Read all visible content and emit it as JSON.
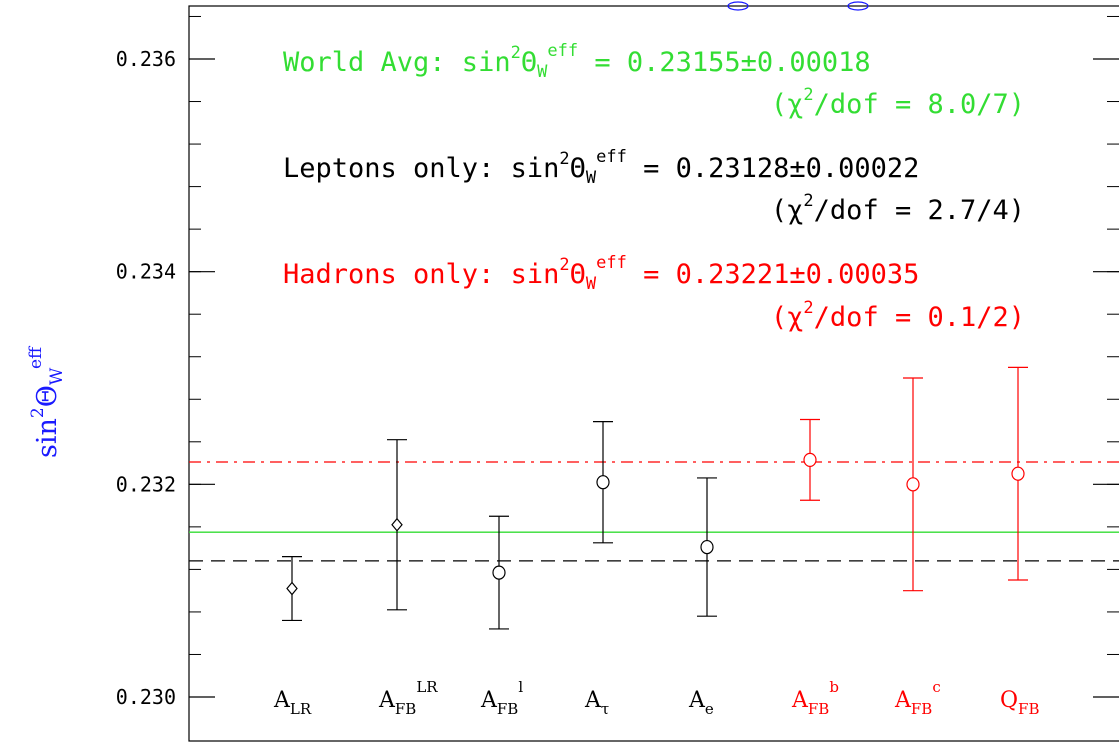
{
  "chart_data": {
    "type": "scatter",
    "ylabel": "sin²ΘW eff",
    "ylim": [
      0.2299,
      0.2365
    ],
    "yticks": [
      0.23,
      0.232,
      0.234,
      0.236
    ],
    "ytick_labels": [
      "0.230",
      "0.232",
      "0.234",
      "0.236"
    ],
    "minor_y_step": 0.0004,
    "points": [
      {
        "label": "A_LR",
        "sub": "LR",
        "sup": "",
        "value": 0.23102,
        "err_low": 0.0003,
        "err_high": 0.0003,
        "marker": "diamond",
        "color": "#000000"
      },
      {
        "label": "A_FB^LR",
        "sub": "FB",
        "sup": "LR",
        "value": 0.23162,
        "err_low": 0.0008,
        "err_high": 0.0008,
        "marker": "diamond",
        "color": "#000000"
      },
      {
        "label": "A_FB^l",
        "sub": "FB",
        "sup": "l",
        "value": 0.23117,
        "err_low": 0.00053,
        "err_high": 0.00053,
        "marker": "circle",
        "color": "#000000"
      },
      {
        "label": "A_tau",
        "sub": "τ",
        "sup": "",
        "value": 0.23202,
        "err_low": 0.00057,
        "err_high": 0.00057,
        "marker": "circle",
        "color": "#000000"
      },
      {
        "label": "A_e",
        "sub": "e",
        "sup": "",
        "value": 0.23141,
        "err_low": 0.00065,
        "err_high": 0.00065,
        "marker": "circle",
        "color": "#000000"
      },
      {
        "label": "A_FB^b",
        "sub": "FB",
        "sup": "b",
        "value": 0.23223,
        "err_low": 0.00038,
        "err_high": 0.00038,
        "marker": "circle",
        "color": "#ff0000"
      },
      {
        "label": "A_FB^c",
        "sub": "FB",
        "sup": "c",
        "value": 0.232,
        "err_low": 0.001,
        "err_high": 0.001,
        "marker": "circle",
        "color": "#ff0000"
      },
      {
        "label": "Q_FB",
        "sub": "FB",
        "sup": "",
        "value": 0.2321,
        "err_low": 0.001,
        "err_high": 0.001,
        "marker": "circle",
        "color": "#ff0000"
      }
    ],
    "point_bases": [
      "A",
      "A",
      "A",
      "A",
      "A",
      "A",
      "A",
      "Q"
    ],
    "reference_lines": [
      {
        "name": "World Avg",
        "value": 0.23155,
        "style": "solid",
        "color": "#33dd33"
      },
      {
        "name": "Leptons only",
        "value": 0.23128,
        "style": "dashed",
        "color": "#000000"
      },
      {
        "name": "Hadrons only",
        "value": 0.23221,
        "style": "dashdot",
        "color": "#ff0000"
      }
    ],
    "annotations": [
      {
        "prefix": "World Avg: sin",
        "value_text": " = 0.23155±0.00018",
        "chi": "(χ",
        "chi_rest": "/dof = 8.0/7)",
        "color": "#33dd33"
      },
      {
        "prefix": "Leptons only: sin",
        "value_text": " = 0.23128±0.00022",
        "chi": "(χ",
        "chi_rest": "/dof = 2.7/4)",
        "color": "#000000"
      },
      {
        "prefix": "Hadrons only: sin",
        "value_text": " = 0.23221±0.00035",
        "chi": "(χ",
        "chi_rest": "/dof = 0.1/2)",
        "color": "#ff0000"
      }
    ],
    "symbol_sin_sup": "2",
    "symbol_theta": "Θ",
    "symbol_w_sub": "W",
    "symbol_eff_sup": "eff",
    "ylabel_color": "#1a1aff"
  }
}
